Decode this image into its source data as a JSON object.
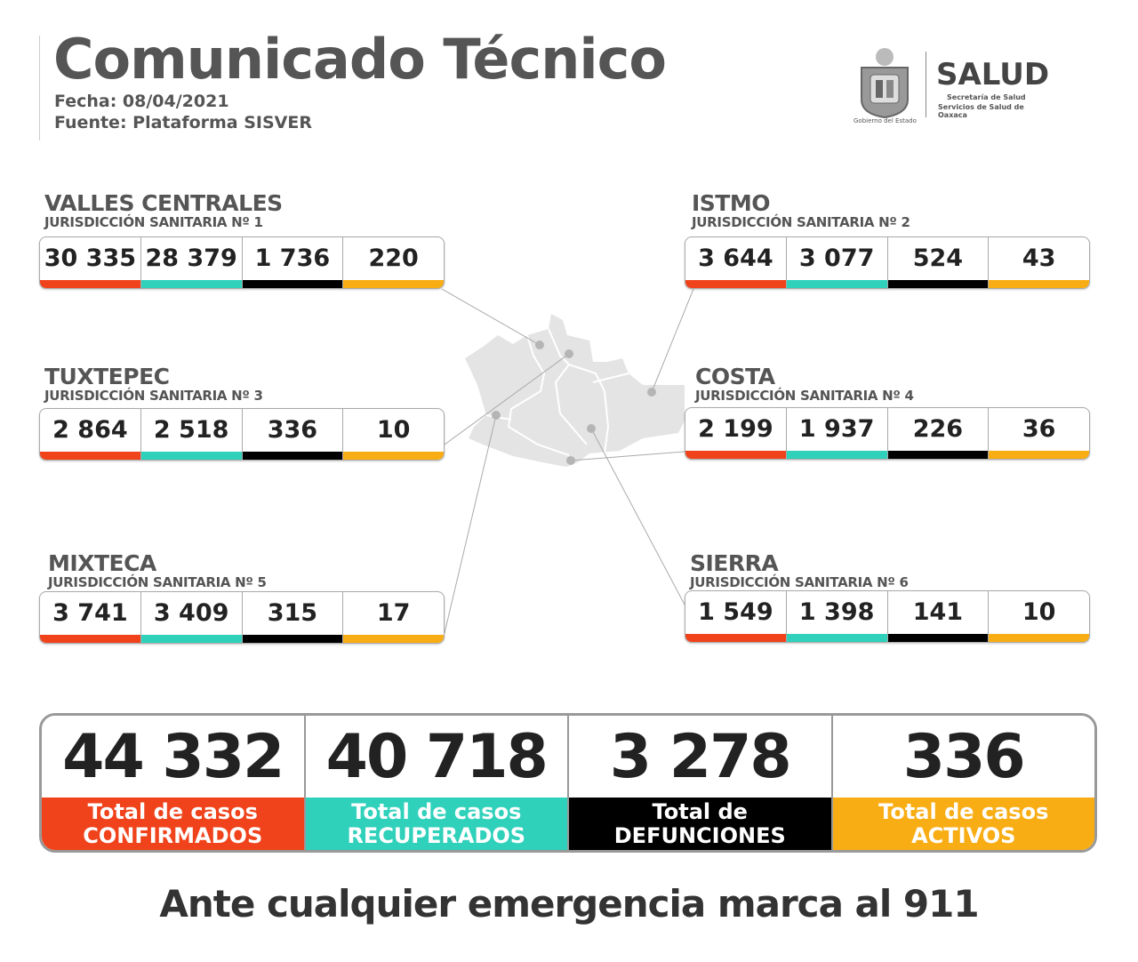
{
  "header": {
    "title": "Comunicado Técnico",
    "date": "Fecha: 08/04/2021",
    "source": "Fuente: Plataforma SISVER"
  },
  "logo": {
    "government": "Gobierno del Estado",
    "brand": "SALUD",
    "line1": "Secretaría de Salud",
    "line2": "Servicios de Salud de Oaxaca"
  },
  "colors": {
    "confirmed": "#f0431b",
    "recovered": "#2fd1bb",
    "deaths": "#000000",
    "active": "#f9ad14",
    "map": "#e4e4e4"
  },
  "regions": [
    {
      "name": "VALLES CENTRALES",
      "sub": "JURISDICCIÓN SANITARIA Nº 1",
      "values": [
        "30 335",
        "28 379",
        "1 736",
        "220"
      ]
    },
    {
      "name": "ISTMO",
      "sub": "JURISDICCIÓN SANITARIA Nº 2",
      "values": [
        "3 644",
        "3 077",
        "524",
        "43"
      ]
    },
    {
      "name": "TUXTEPEC",
      "sub": "JURISDICCIÓN SANITARIA Nº 3",
      "values": [
        "2 864",
        "2 518",
        "336",
        "10"
      ]
    },
    {
      "name": "COSTA",
      "sub": "JURISDICCIÓN SANITARIA Nº 4",
      "values": [
        "2 199",
        "1 937",
        "226",
        "36"
      ]
    },
    {
      "name": "MIXTECA",
      "sub": "JURISDICCIÓN SANITARIA Nº 5",
      "values": [
        "3 741",
        "3 409",
        "315",
        "17"
      ]
    },
    {
      "name": "SIERRA",
      "sub": "JURISDICCIÓN SANITARIA Nº 6",
      "values": [
        "1 549",
        "1 398",
        "141",
        "10"
      ]
    }
  ],
  "totals": [
    {
      "value": "44 332",
      "line1": "Total de casos",
      "line2": "CONFIRMADOS"
    },
    {
      "value": "40 718",
      "line1": "Total de casos",
      "line2": "RECUPERADOS"
    },
    {
      "value": "3 278",
      "line1": "Total de",
      "line2": "DEFUNCIONES"
    },
    {
      "value": "336",
      "line1": "Total de casos",
      "line2": "ACTIVOS"
    }
  ],
  "footer": "Ante cualquier emergencia marca al 911"
}
